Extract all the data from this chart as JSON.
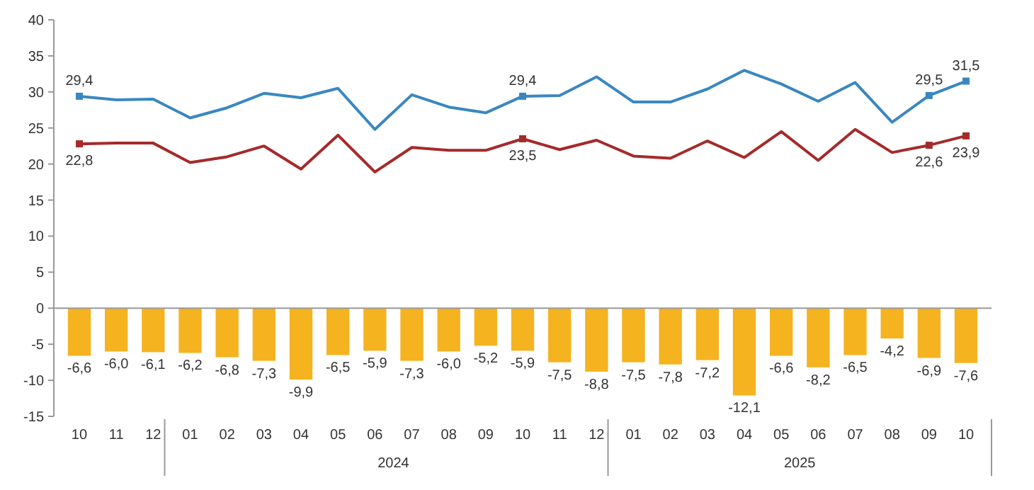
{
  "chart_data": {
    "type": "bar",
    "categories": [
      "10",
      "11",
      "12",
      "01",
      "02",
      "03",
      "04",
      "05",
      "06",
      "07",
      "08",
      "09",
      "10",
      "11",
      "12",
      "01",
      "02",
      "03",
      "04",
      "05",
      "06",
      "07",
      "08",
      "09",
      "10"
    ],
    "series": [
      {
        "color": "#f5b320",
        "values": [
          -6.6,
          -6.0,
          -6.1,
          -6.2,
          -6.8,
          -7.3,
          -9.9,
          -6.5,
          -5.9,
          -7.3,
          -6.0,
          -5.2,
          -5.9,
          -7.5,
          -8.8,
          -7.5,
          -7.8,
          -7.2,
          -12.1,
          -6.6,
          -8.2,
          -6.5,
          -4.2,
          -6.9,
          -7.6
        ],
        "value_labels": [
          "-6,6",
          "-6,0",
          "-6,1",
          "-6,2",
          "-6,8",
          "-7,3",
          "-9,9",
          "-6,5",
          "-5,9",
          "-7,3",
          "-6,0",
          "-5,2",
          "-5,9",
          "-7,5",
          "-8,8",
          "-7,5",
          "-7,8",
          "-7,2",
          "-12,1",
          "-6,6",
          "-8,2",
          "-6,5",
          "-4,2",
          "-6,9",
          "-7,6"
        ]
      },
      {
        "type": "line",
        "color": "#3a87c0",
        "values": [
          29.4,
          28.9,
          29.0,
          26.4,
          27.8,
          29.8,
          29.2,
          30.5,
          24.8,
          29.6,
          27.9,
          27.1,
          29.4,
          29.5,
          32.1,
          28.6,
          28.6,
          30.4,
          33.0,
          31.1,
          28.7,
          31.3,
          25.8,
          29.5,
          31.5
        ],
        "value_labels": [
          "29,4",
          null,
          null,
          null,
          null,
          null,
          null,
          null,
          null,
          null,
          null,
          null,
          "29,4",
          null,
          null,
          null,
          null,
          null,
          null,
          null,
          null,
          null,
          null,
          "29,5",
          "31,5"
        ]
      },
      {
        "type": "line",
        "color": "#a52a2a",
        "values": [
          22.8,
          22.9,
          22.9,
          20.2,
          21.0,
          22.5,
          19.3,
          24.0,
          18.9,
          22.3,
          21.9,
          21.9,
          23.5,
          22.0,
          23.3,
          21.1,
          20.8,
          23.2,
          20.9,
          24.5,
          20.5,
          24.8,
          21.6,
          22.6,
          23.9
        ],
        "value_labels": [
          "22,8",
          null,
          null,
          null,
          null,
          null,
          null,
          null,
          null,
          null,
          null,
          null,
          "23,5",
          null,
          null,
          null,
          null,
          null,
          null,
          null,
          null,
          null,
          null,
          "22,6",
          "23,9"
        ]
      }
    ],
    "ylim": [
      -15,
      40
    ],
    "yticks": [
      -15,
      -10,
      -5,
      0,
      5,
      10,
      15,
      20,
      25,
      30,
      35,
      40
    ],
    "annotations": [
      "2024",
      "2025"
    ]
  }
}
